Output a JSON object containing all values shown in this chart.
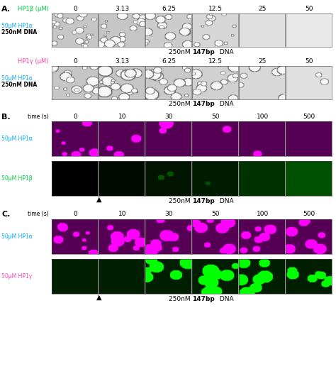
{
  "panel_A": {
    "label": "A.",
    "row1_label": "HP1β (μM)",
    "row1_label_color": "#00cc44",
    "row2_label": "HP1γ (μM)",
    "row2_label_color": "#ff44aa",
    "side_cyan": "#00aaff",
    "concentrations": [
      "0",
      "3.13",
      "6.25",
      "12.5",
      "25",
      "50"
    ],
    "caption_normal": "250nM ",
    "caption_bold": "147bp",
    "caption_end": " DNA"
  },
  "panel_B": {
    "label": "B.",
    "time_label": "time (s)",
    "time_points": [
      "0",
      "10",
      "30",
      "50",
      "100",
      "500"
    ],
    "row1_label": "50μM HP1α",
    "row1_label_color": "#00aaff",
    "row2_label": "50μM HP1β",
    "row2_label_color": "#00cc44",
    "magenta_bg": [
      85,
      0,
      85
    ],
    "magenta_drop": [
      255,
      0,
      255
    ],
    "green_bg_levels": [
      0,
      10,
      20,
      28,
      50,
      80
    ],
    "B_row1_counts": [
      7,
      3,
      2,
      1,
      1,
      0
    ],
    "B_row1_min_r": [
      3,
      5,
      7,
      7,
      7,
      4
    ],
    "B_row1_max_r": [
      10,
      12,
      14,
      14,
      14,
      8
    ]
  },
  "panel_C": {
    "label": "C.",
    "time_label": "time (s)",
    "time_points": [
      "0",
      "10",
      "30",
      "50",
      "100",
      "500"
    ],
    "row1_label": "50μM HP1α",
    "row1_label_color": "#00aaff",
    "row2_label": "50μM HP1γ",
    "row2_label_color": "#ff44aa",
    "magenta_bg": [
      85,
      0,
      85
    ],
    "magenta_drop": [
      255,
      0,
      255
    ],
    "green_bg": [
      0,
      30,
      0
    ],
    "green_drop": [
      0,
      255,
      0
    ],
    "C_row1_counts": [
      8,
      9,
      9,
      8,
      7,
      7
    ],
    "C_row1_min_r": [
      4,
      5,
      6,
      6,
      6,
      6
    ],
    "C_row1_max_r": [
      11,
      12,
      13,
      13,
      12,
      12
    ],
    "C_row2_counts": [
      0,
      0,
      7,
      8,
      7,
      7
    ],
    "C_row2_min_r": [
      6,
      6,
      7,
      7,
      7,
      7
    ],
    "C_row2_max_r": [
      14,
      14,
      15,
      15,
      14,
      14
    ]
  },
  "A_row1_bg": [
    0.78,
    0.78,
    0.8,
    0.84,
    0.88,
    0.91
  ],
  "A_row1_counts": [
    25,
    20,
    18,
    12,
    0,
    0
  ],
  "A_row1_min_r": [
    2,
    2,
    2,
    2,
    2,
    2
  ],
  "A_row1_max_r": [
    7,
    9,
    9,
    7,
    5,
    5
  ],
  "A_row2_bg": [
    0.78,
    0.78,
    0.79,
    0.82,
    0.85,
    0.88
  ],
  "A_row2_counts": [
    15,
    18,
    18,
    14,
    6,
    2
  ],
  "A_row2_min_r": [
    3,
    3,
    3,
    3,
    4,
    5
  ],
  "A_row2_max_r": [
    11,
    13,
    13,
    12,
    10,
    8
  ],
  "fig_bg": "#ffffff"
}
